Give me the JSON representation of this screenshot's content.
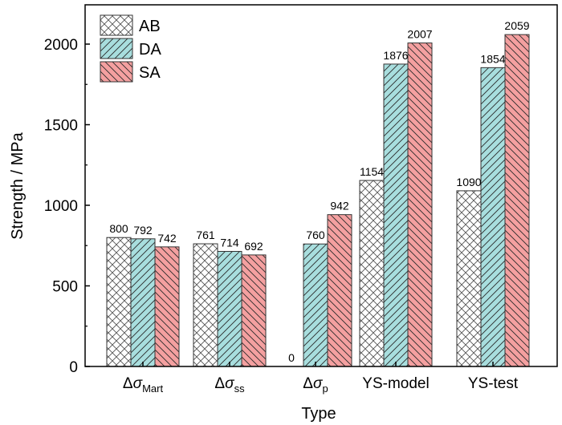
{
  "chart_data": {
    "type": "bar",
    "title": "",
    "xlabel": "Type",
    "ylabel": "Strength / MPa",
    "ylim": [
      0,
      2250
    ],
    "yticks": [
      0,
      500,
      1000,
      1500,
      2000
    ],
    "ytick_labels": [
      "0",
      "500",
      "1000",
      "1500",
      "2000"
    ],
    "grid": false,
    "legend_position": "top-left",
    "categories": [
      {
        "main": "Δσ",
        "sub": "Mart",
        "plain": "Δσ_Mart"
      },
      {
        "main": "Δσ",
        "sub": "ss",
        "plain": "Δσ_ss"
      },
      {
        "main": "Δσ",
        "sub": "p",
        "plain": "Δσ_p"
      },
      {
        "main": "YS-model",
        "sub": "",
        "plain": "YS-model"
      },
      {
        "main": "YS-test",
        "sub": "",
        "plain": "YS-test"
      }
    ],
    "series": [
      {
        "name": "AB",
        "values": [
          800,
          761,
          0,
          1154,
          1090
        ],
        "labels": [
          "800",
          "761",
          "0",
          "1154",
          "1090"
        ],
        "fill": "#ffffff",
        "pattern": "crosshatch",
        "line": "#555555"
      },
      {
        "name": "DA",
        "values": [
          792,
          714,
          760,
          1876,
          1854
        ],
        "labels": [
          "792",
          "714",
          "760",
          "1876",
          "1854"
        ],
        "fill": "#a8dede",
        "pattern": "forward-diagonal",
        "line": "#2a2a2a"
      },
      {
        "name": "SA",
        "values": [
          742,
          692,
          942,
          2007,
          2059
        ],
        "labels": [
          "742",
          "692",
          "942",
          "2007",
          "2059"
        ],
        "fill": "#f4a0a0",
        "pattern": "back-diagonal",
        "line": "#2a2a2a"
      }
    ]
  }
}
